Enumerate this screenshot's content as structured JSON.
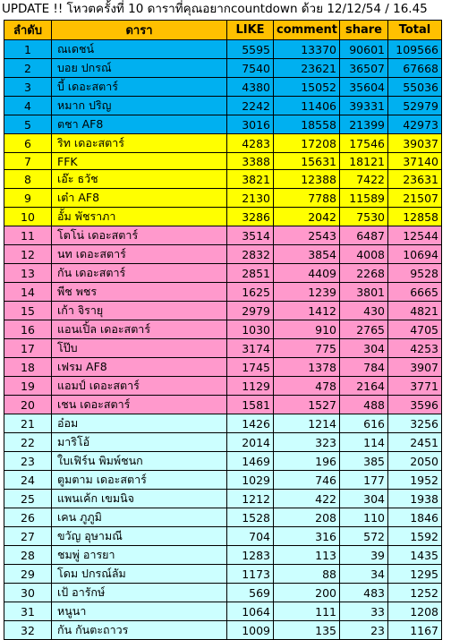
{
  "title": "UPDATE !! โหวตครั้งที่ 10 ดาราที่คุณอยากcountdown ด้วย 12/12/54 / 16.45",
  "headers": {
    "rank": "ลำดับ",
    "name": "ดารา",
    "like": "LIKE",
    "comment": "comment",
    "share": "share",
    "total": "Total"
  },
  "colors": {
    "header": "#ffc000",
    "blue": "#00b0f0",
    "yellow": "#ffff00",
    "pink": "#ff99cc",
    "cyan": "#ccffff"
  },
  "rows": [
    {
      "rank": "1",
      "name": "ณเดชน์",
      "like": "5595",
      "comment": "13370",
      "share": "90601",
      "total": "109566",
      "group": "blue"
    },
    {
      "rank": "2",
      "name": "บอย ปกรณ์",
      "like": "7540",
      "comment": "23621",
      "share": "36507",
      "total": "67668",
      "group": "blue"
    },
    {
      "rank": "3",
      "name": "บี้ เดอะสตาร์",
      "like": "4380",
      "comment": "15052",
      "share": "35604",
      "total": "55036",
      "group": "blue"
    },
    {
      "rank": "4",
      "name": "หมาก ปริญ",
      "like": "2242",
      "comment": "11406",
      "share": "39331",
      "total": "52979",
      "group": "blue"
    },
    {
      "rank": "5",
      "name": "ตชา AF8",
      "like": "3016",
      "comment": "18558",
      "share": "21399",
      "total": "42973",
      "group": "blue"
    },
    {
      "rank": "6",
      "name": "ริท เดอะสตาร์",
      "like": "4283",
      "comment": "17208",
      "share": "17546",
      "total": "39037",
      "group": "yellow"
    },
    {
      "rank": "7",
      "name": "FFK",
      "like": "3388",
      "comment": "15631",
      "share": "18121",
      "total": "37140",
      "group": "yellow"
    },
    {
      "rank": "8",
      "name": "เอ๊ะ ธวัช",
      "like": "3821",
      "comment": "12388",
      "share": "7422",
      "total": "23631",
      "group": "yellow"
    },
    {
      "rank": "9",
      "name": "เต๋า AF8",
      "like": "2130",
      "comment": "7788",
      "share": "11589",
      "total": "21507",
      "group": "yellow"
    },
    {
      "rank": "10",
      "name": "อั้ม พัชราภา",
      "like": "3286",
      "comment": "2042",
      "share": "7530",
      "total": "12858",
      "group": "yellow"
    },
    {
      "rank": "11",
      "name": "โตโน่ เดอะสตาร์",
      "like": "3514",
      "comment": "2543",
      "share": "6487",
      "total": "12544",
      "group": "pink"
    },
    {
      "rank": "12",
      "name": "นท เดอะสตาร์",
      "like": "2832",
      "comment": "3854",
      "share": "4008",
      "total": "10694",
      "group": "pink"
    },
    {
      "rank": "13",
      "name": "กัน เดอะสตาร์",
      "like": "2851",
      "comment": "4409",
      "share": "2268",
      "total": "9528",
      "group": "pink"
    },
    {
      "rank": "14",
      "name": "พีช พชร",
      "like": "1625",
      "comment": "1239",
      "share": "3801",
      "total": "6665",
      "group": "pink"
    },
    {
      "rank": "15",
      "name": "เก้า จิรายุ",
      "like": "2979",
      "comment": "1412",
      "share": "430",
      "total": "4821",
      "group": "pink"
    },
    {
      "rank": "16",
      "name": "แอนเปิ้ล เดอะสตาร์",
      "like": "1030",
      "comment": "910",
      "share": "2765",
      "total": "4705",
      "group": "pink"
    },
    {
      "rank": "17",
      "name": "โป๊บ",
      "like": "3174",
      "comment": "775",
      "share": "304",
      "total": "4253",
      "group": "pink"
    },
    {
      "rank": "18",
      "name": "เฟรม AF8",
      "like": "1745",
      "comment": "1378",
      "share": "784",
      "total": "3907",
      "group": "pink"
    },
    {
      "rank": "19",
      "name": "แอมป์ เดอะสตาร์",
      "like": "1129",
      "comment": "478",
      "share": "2164",
      "total": "3771",
      "group": "pink"
    },
    {
      "rank": "20",
      "name": "เชน เดอะสตาร์",
      "like": "1581",
      "comment": "1527",
      "share": "488",
      "total": "3596",
      "group": "pink"
    },
    {
      "rank": "21",
      "name": "อ๋อม",
      "like": "1426",
      "comment": "1214",
      "share": "616",
      "total": "3256",
      "group": "cyan"
    },
    {
      "rank": "22",
      "name": "มาริโอ้",
      "like": "2014",
      "comment": "323",
      "share": "114",
      "total": "2451",
      "group": "cyan"
    },
    {
      "rank": "23",
      "name": "ใบเฟิร์น พิมพ์ชนก",
      "like": "1469",
      "comment": "196",
      "share": "385",
      "total": "2050",
      "group": "cyan"
    },
    {
      "rank": "24",
      "name": "ตูมตาม เดอะสตาร์",
      "like": "1029",
      "comment": "746",
      "share": "177",
      "total": "1952",
      "group": "cyan"
    },
    {
      "rank": "25",
      "name": "แพนเค้ก เขมนิจ",
      "like": "1212",
      "comment": "422",
      "share": "304",
      "total": "1938",
      "group": "cyan"
    },
    {
      "rank": "26",
      "name": "เคน ภูภูมิ",
      "like": "1528",
      "comment": "208",
      "share": "110",
      "total": "1846",
      "group": "cyan"
    },
    {
      "rank": "27",
      "name": "ขวัญ อุษามณี",
      "like": "704",
      "comment": "316",
      "share": "572",
      "total": "1592",
      "group": "cyan"
    },
    {
      "rank": "28",
      "name": "ชมพู่ อารยา",
      "like": "1283",
      "comment": "113",
      "share": "39",
      "total": "1435",
      "group": "cyan"
    },
    {
      "rank": "29",
      "name": "โดม ปกรณ์ลัม",
      "like": "1173",
      "comment": "88",
      "share": "34",
      "total": "1295",
      "group": "cyan"
    },
    {
      "rank": "30",
      "name": "เป้ อารักษ์",
      "like": "569",
      "comment": "200",
      "share": "483",
      "total": "1252",
      "group": "cyan"
    },
    {
      "rank": "31",
      "name": "หนูนา",
      "like": "1064",
      "comment": "111",
      "share": "33",
      "total": "1208",
      "group": "cyan"
    },
    {
      "rank": "32",
      "name": "กัน กันตะถาวร",
      "like": "1009",
      "comment": "135",
      "share": "23",
      "total": "1167",
      "group": "cyan"
    }
  ]
}
